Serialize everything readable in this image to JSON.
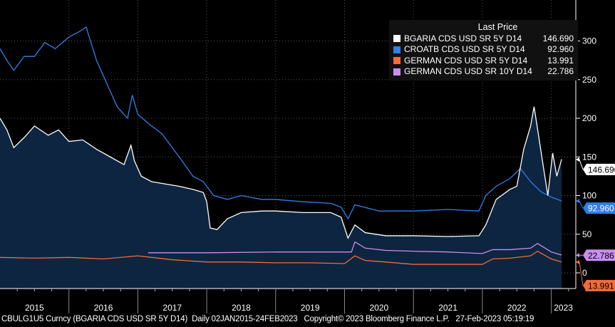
{
  "chart_data": {
    "type": "line",
    "legend_title": "Last Price",
    "legend_placement": "top-right",
    "ylim": [
      -20,
      330
    ],
    "yticks": [
      0,
      50,
      100,
      150,
      200,
      250,
      300
    ],
    "xlim": [
      2015.0,
      2023.3
    ],
    "xticks": [
      "2015",
      "2016",
      "2017",
      "2018",
      "2019",
      "2020",
      "2021",
      "2022",
      "2023"
    ],
    "grid": true,
    "series": [
      {
        "name": "BGARIA CDS USD SR 5Y D14",
        "last": "146.690",
        "color": "#ffffff",
        "area": true,
        "x": [
          2015.0,
          2015.1,
          2015.2,
          2015.35,
          2015.5,
          2015.7,
          2015.85,
          2016.0,
          2016.2,
          2016.4,
          2016.6,
          2016.8,
          2016.9,
          2016.95,
          2017.05,
          2017.2,
          2017.4,
          2017.6,
          2017.8,
          2017.95,
          2018.0,
          2018.05,
          2018.15,
          2018.3,
          2018.5,
          2018.8,
          2019.0,
          2019.4,
          2019.8,
          2019.95,
          2020.05,
          2020.15,
          2020.3,
          2020.6,
          2021.0,
          2021.5,
          2021.95,
          2022.05,
          2022.2,
          2022.4,
          2022.5,
          2022.6,
          2022.7,
          2022.75,
          2022.82,
          2022.88,
          2022.95,
          2023.02,
          2023.08,
          2023.15
        ],
        "y": [
          200,
          185,
          162,
          175,
          190,
          178,
          185,
          170,
          172,
          160,
          150,
          140,
          165,
          145,
          125,
          118,
          115,
          112,
          108,
          104,
          92,
          58,
          56,
          70,
          78,
          80,
          80,
          78,
          78,
          72,
          45,
          62,
          52,
          48,
          48,
          47,
          48,
          62,
          95,
          108,
          112,
          160,
          190,
          215,
          175,
          140,
          100,
          155,
          125,
          147
        ]
      },
      {
        "name": "CROATB CDS USD SR 5Y D14",
        "last": "92.960",
        "color": "#2f7fe8",
        "x": [
          2015.0,
          2015.1,
          2015.2,
          2015.35,
          2015.5,
          2015.65,
          2015.8,
          2016.0,
          2016.15,
          2016.25,
          2016.4,
          2016.55,
          2016.7,
          2016.85,
          2016.92,
          2017.0,
          2017.2,
          2017.35,
          2017.6,
          2017.8,
          2017.95,
          2018.1,
          2018.3,
          2018.5,
          2018.8,
          2019.0,
          2019.4,
          2019.8,
          2019.95,
          2020.05,
          2020.15,
          2020.5,
          2021.0,
          2021.5,
          2021.95,
          2022.05,
          2022.2,
          2022.4,
          2022.55,
          2022.7,
          2022.85,
          2023.0,
          2023.15
        ],
        "y": [
          290,
          275,
          262,
          280,
          280,
          298,
          290,
          305,
          312,
          318,
          275,
          245,
          215,
          200,
          230,
          205,
          190,
          180,
          150,
          125,
          118,
          100,
          95,
          100,
          95,
          95,
          92,
          90,
          85,
          70,
          88,
          80,
          80,
          82,
          80,
          100,
          112,
          122,
          135,
          118,
          105,
          98,
          93
        ]
      },
      {
        "name": "GERMAN CDS USD SR 5Y D14",
        "last": "13.991",
        "color": "#f26b3a",
        "x": [
          2015.0,
          2015.5,
          2016.0,
          2016.5,
          2017.0,
          2017.5,
          2018.0,
          2018.5,
          2019.0,
          2019.5,
          2020.0,
          2020.15,
          2020.3,
          2020.6,
          2021.0,
          2021.5,
          2022.0,
          2022.15,
          2022.4,
          2022.7,
          2022.8,
          2023.0,
          2023.15
        ],
        "y": [
          20,
          19,
          20,
          18,
          22,
          17,
          14,
          14,
          13,
          13,
          12,
          22,
          16,
          14,
          11,
          11,
          11,
          18,
          19,
          22,
          28,
          18,
          14
        ]
      },
      {
        "name": "GERMAN CDS USD SR 10Y D14",
        "last": "22.786",
        "color": "#c98ef0",
        "x": [
          2017.15,
          2018.0,
          2019.0,
          2020.1,
          2020.15,
          2020.3,
          2020.6,
          2021.0,
          2021.5,
          2022.0,
          2022.15,
          2022.4,
          2022.7,
          2022.8,
          2023.0,
          2023.15
        ],
        "y": [
          26,
          26,
          27,
          27,
          40,
          32,
          29,
          28,
          27,
          25,
          30,
          30,
          32,
          38,
          27,
          23
        ]
      }
    ]
  },
  "legend_title": "Last Price",
  "footer": "CBULG1U5 Curncy (BGARIA CDS USD SR 5Y D14)  Daily 02JAN2015-24FEB2023   Copyright© 2023 Bloomberg Finance L.P.   27-Feb-2023 05:19:19"
}
